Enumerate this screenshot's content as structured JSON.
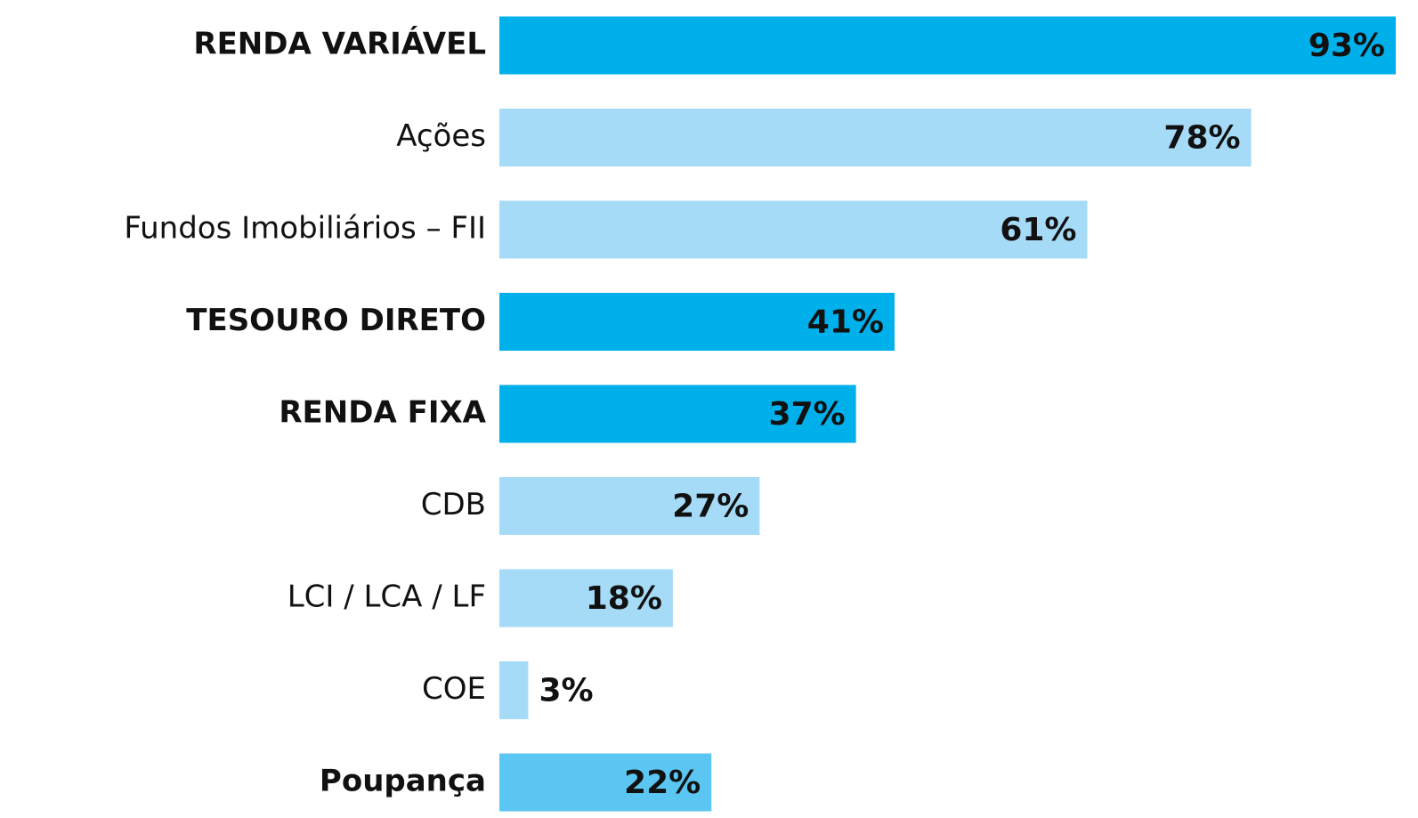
{
  "chart_data": {
    "type": "bar",
    "orientation": "horizontal",
    "categories": [
      "RENDA VARIÁVEL",
      "Ações",
      "Fundos Imobiliários – FII",
      "TESOURO DIRETO",
      "RENDA FIXA",
      "CDB",
      "LCI / LCA / LF",
      "COE",
      "Poupança"
    ],
    "values": [
      93,
      78,
      61,
      41,
      37,
      27,
      18,
      3,
      22
    ],
    "value_labels": [
      "93%",
      "78%",
      "61%",
      "41%",
      "37%",
      "27%",
      "18%",
      "3%",
      "22%"
    ],
    "colors": [
      "#00b0eb",
      "#a6dbf7",
      "#a6dbf7",
      "#00b0eb",
      "#00b0eb",
      "#a6dbf7",
      "#a6dbf7",
      "#a6dbf7",
      "#5bc6f2"
    ],
    "bold": [
      true,
      false,
      false,
      true,
      true,
      false,
      false,
      false,
      true
    ]
  }
}
